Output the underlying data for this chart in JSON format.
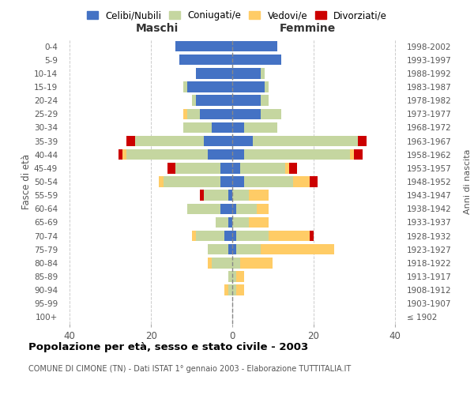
{
  "age_groups": [
    "100+",
    "95-99",
    "90-94",
    "85-89",
    "80-84",
    "75-79",
    "70-74",
    "65-69",
    "60-64",
    "55-59",
    "50-54",
    "45-49",
    "40-44",
    "35-39",
    "30-34",
    "25-29",
    "20-24",
    "15-19",
    "10-14",
    "5-9",
    "0-4"
  ],
  "birth_years": [
    "≤ 1902",
    "1903-1907",
    "1908-1912",
    "1913-1917",
    "1918-1922",
    "1923-1927",
    "1928-1932",
    "1933-1937",
    "1938-1942",
    "1943-1947",
    "1948-1952",
    "1953-1957",
    "1958-1962",
    "1963-1967",
    "1968-1972",
    "1973-1977",
    "1978-1982",
    "1983-1987",
    "1988-1992",
    "1993-1997",
    "1998-2002"
  ],
  "males": {
    "celibi": [
      0,
      0,
      0,
      0,
      0,
      1,
      2,
      1,
      3,
      1,
      3,
      3,
      6,
      7,
      5,
      8,
      9,
      11,
      9,
      13,
      14
    ],
    "coniugati": [
      0,
      0,
      1,
      1,
      5,
      5,
      7,
      3,
      8,
      6,
      14,
      11,
      20,
      17,
      7,
      3,
      1,
      1,
      0,
      0,
      0
    ],
    "vedovi": [
      0,
      0,
      1,
      0,
      1,
      0,
      1,
      0,
      0,
      0,
      1,
      0,
      1,
      0,
      0,
      1,
      0,
      0,
      0,
      0,
      0
    ],
    "divorziati": [
      0,
      0,
      0,
      0,
      0,
      0,
      0,
      0,
      0,
      1,
      0,
      2,
      1,
      2,
      0,
      0,
      0,
      0,
      0,
      0,
      0
    ]
  },
  "females": {
    "nubili": [
      0,
      0,
      0,
      0,
      0,
      1,
      1,
      0,
      1,
      0,
      3,
      2,
      3,
      5,
      3,
      7,
      7,
      8,
      7,
      12,
      11
    ],
    "coniugate": [
      0,
      0,
      1,
      1,
      2,
      6,
      8,
      4,
      5,
      4,
      12,
      11,
      26,
      26,
      8,
      5,
      2,
      1,
      1,
      0,
      0
    ],
    "vedove": [
      0,
      0,
      2,
      2,
      8,
      18,
      10,
      5,
      3,
      5,
      4,
      1,
      1,
      0,
      0,
      0,
      0,
      0,
      0,
      0,
      0
    ],
    "divorziate": [
      0,
      0,
      0,
      0,
      0,
      0,
      1,
      0,
      0,
      0,
      2,
      2,
      2,
      2,
      0,
      0,
      0,
      0,
      0,
      0,
      0
    ]
  },
  "colors": {
    "celibi_nubili": "#4472C4",
    "coniugati": "#c5d6a0",
    "vedovi": "#FFCC66",
    "divorziati": "#CC0000"
  },
  "xlim": [
    -42,
    42
  ],
  "xticks": [
    -40,
    -20,
    0,
    20,
    40
  ],
  "xticklabels": [
    "40",
    "20",
    "0",
    "20",
    "40"
  ],
  "title": "Popolazione per età, sesso e stato civile - 2003",
  "subtitle": "COMUNE DI CIMONE (TN) - Dati ISTAT 1° gennaio 2003 - Elaborazione TUTTITALIA.IT",
  "ylabel_left": "Fasce di età",
  "ylabel_right": "Anni di nascita",
  "header_left": "Maschi",
  "header_right": "Femmine",
  "legend_labels": [
    "Celibi/Nubili",
    "Coniugati/e",
    "Vedovi/e",
    "Divorziati/e"
  ],
  "background_color": "#ffffff",
  "grid_color": "#cccccc"
}
